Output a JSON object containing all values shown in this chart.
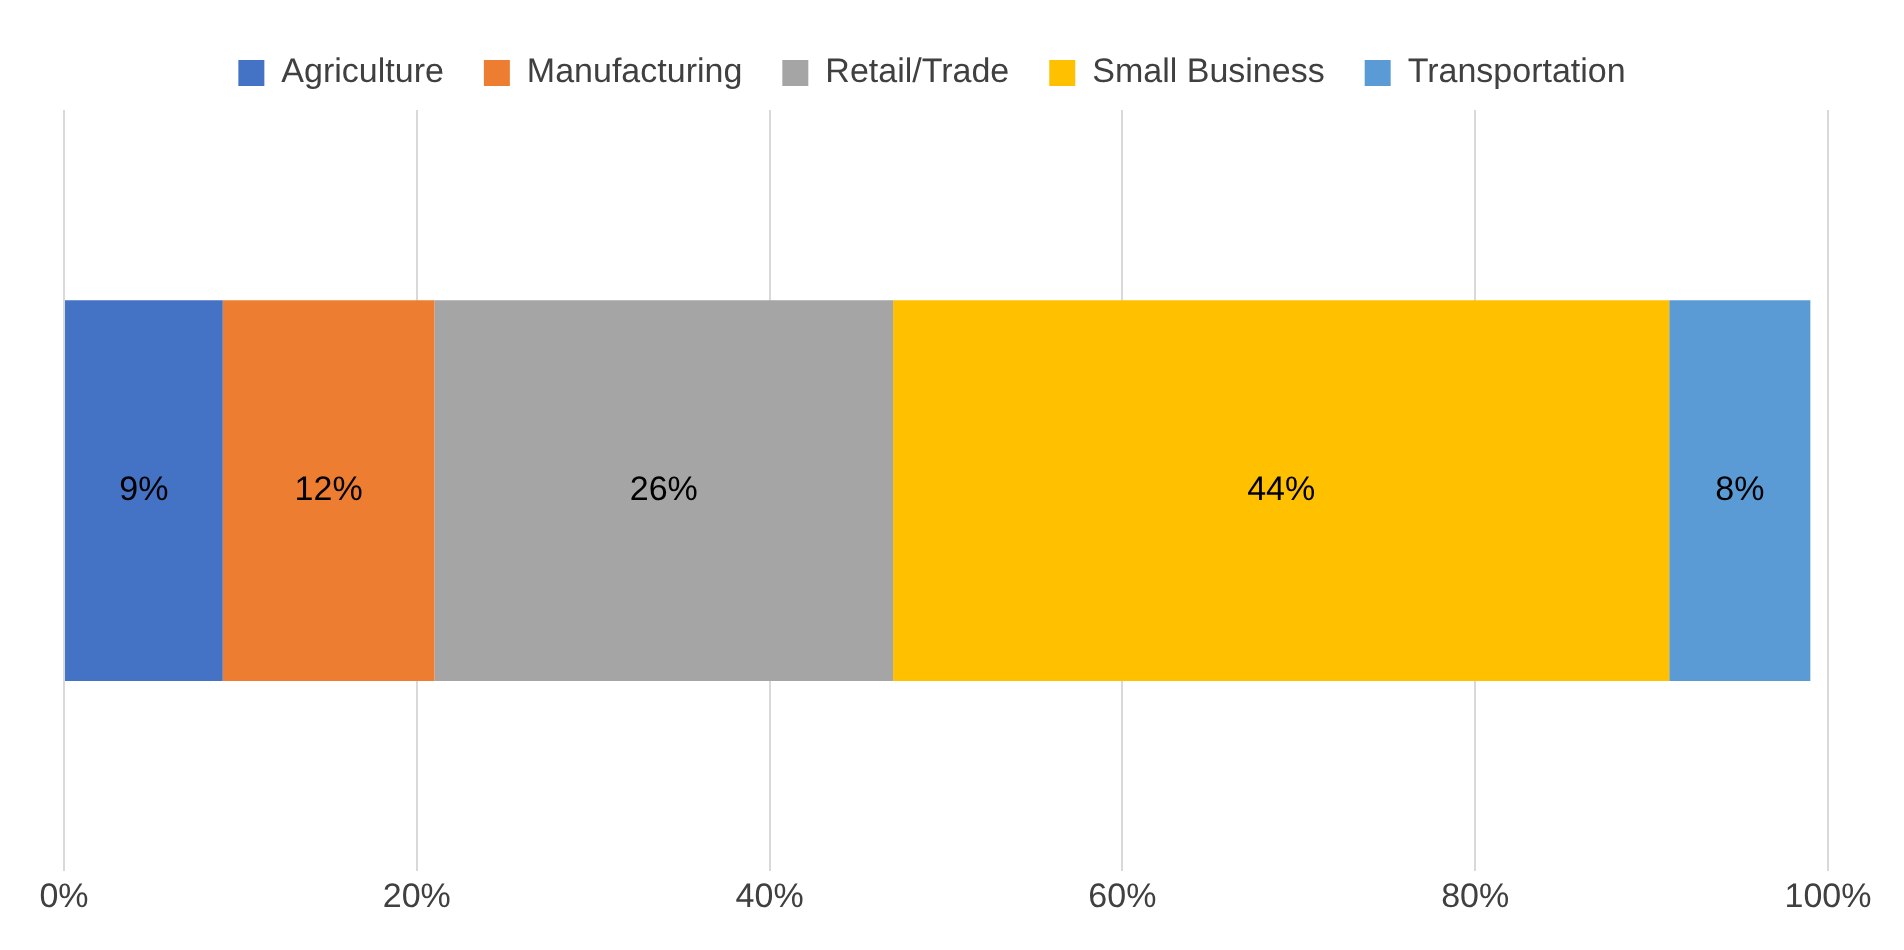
{
  "chart_data": {
    "type": "bar",
    "orientation": "horizontal",
    "stacked": true,
    "categories": [
      null
    ],
    "series": [
      {
        "name": "Agriculture",
        "color": "#4472c4",
        "values": [
          9
        ],
        "value_labels": [
          "9%"
        ]
      },
      {
        "name": "Manufacturing",
        "color": "#ed7d31",
        "values": [
          12
        ],
        "value_labels": [
          "12%"
        ]
      },
      {
        "name": "Retail/Trade",
        "color": "#a5a5a5",
        "values": [
          26
        ],
        "value_labels": [
          "26%"
        ]
      },
      {
        "name": "Small Business",
        "color": "#ffc000",
        "values": [
          44
        ],
        "value_labels": [
          "44%"
        ]
      },
      {
        "name": "Transportation",
        "color": "#5b9bd5",
        "values": [
          8
        ],
        "value_labels": [
          "8%"
        ]
      }
    ],
    "xlim": [
      0,
      100
    ],
    "xticks": [
      {
        "value": 0,
        "label": "0%"
      },
      {
        "value": 20,
        "label": "20%"
      },
      {
        "value": 40,
        "label": "40%"
      },
      {
        "value": 60,
        "label": "60%"
      },
      {
        "value": 80,
        "label": "80%"
      },
      {
        "value": 100,
        "label": "100%"
      }
    ],
    "grid": "x",
    "legend": "top"
  }
}
